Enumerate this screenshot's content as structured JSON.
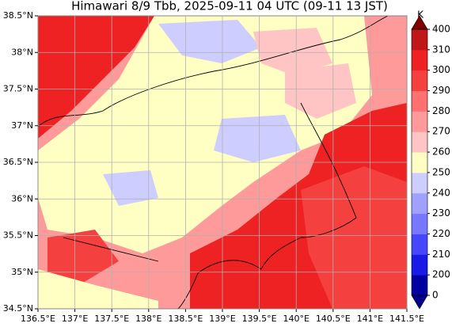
{
  "title": "Himawari 8/9 Tbb, 2025-09-11 04 UTC (09-11 13 JST)",
  "map": {
    "xlim": [
      136.5,
      141.5
    ],
    "ylim": [
      34.5,
      38.5
    ],
    "xticks": [
      {
        "value": 136.5,
        "label": "136.5°E"
      },
      {
        "value": 137,
        "label": "137°E"
      },
      {
        "value": 137.5,
        "label": "137.5°E"
      },
      {
        "value": 138,
        "label": "138°E"
      },
      {
        "value": 138.5,
        "label": "138.5°E"
      },
      {
        "value": 139,
        "label": "139°E"
      },
      {
        "value": 139.5,
        "label": "139.5°E"
      },
      {
        "value": 140,
        "label": "140°E"
      },
      {
        "value": 140.5,
        "label": "140.5°E"
      },
      {
        "value": 141,
        "label": "141°E"
      },
      {
        "value": 141.5,
        "label": "141.5°E"
      }
    ],
    "yticks": [
      {
        "value": 34.5,
        "label": "34.5°N"
      },
      {
        "value": 35,
        "label": "35°N"
      },
      {
        "value": 35.5,
        "label": "35.5°N"
      },
      {
        "value": 36,
        "label": "36°N"
      },
      {
        "value": 36.5,
        "label": "36.5°N"
      },
      {
        "value": 37,
        "label": "37°N"
      },
      {
        "value": 37.5,
        "label": "37.5°N"
      },
      {
        "value": 38,
        "label": "38°N"
      },
      {
        "value": 38.5,
        "label": "38.5°N"
      }
    ],
    "grid": true
  },
  "colorbar": {
    "unit": "K",
    "ticks": [
      0,
      200,
      210,
      220,
      230,
      240,
      250,
      260,
      270,
      280,
      290,
      300,
      310,
      400
    ],
    "colors": [
      "#0000a0",
      "#1a1ae6",
      "#4646ff",
      "#7878ff",
      "#a0a0ff",
      "#cdcdff",
      "#ffffc4",
      "#ffc4c4",
      "#ff9a9a",
      "#ff7070",
      "#f54040",
      "#ee2222",
      "#c01818",
      "#8b0000"
    ],
    "under": "#00008b",
    "over": "#800000"
  }
}
